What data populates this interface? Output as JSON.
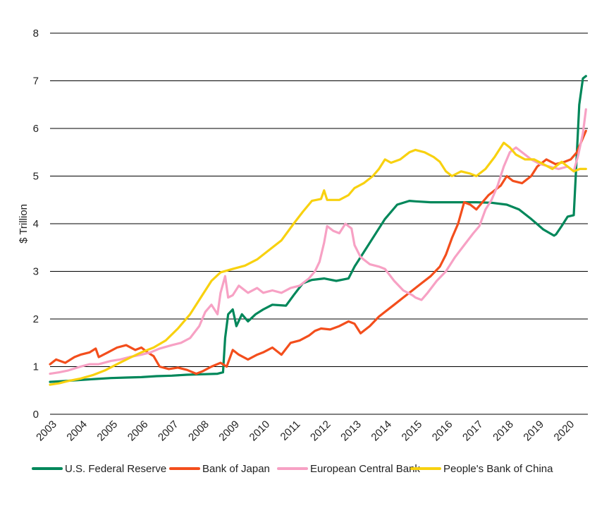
{
  "chart_data": {
    "type": "line",
    "ylabel": "$ Trillion",
    "xlabel": "",
    "ylim": [
      0,
      8
    ],
    "xlim": [
      2003,
      2020.65
    ],
    "yticks": [
      0,
      1,
      2,
      3,
      4,
      5,
      6,
      7,
      8
    ],
    "xticks": [
      "2003",
      "2004",
      "2005",
      "2006",
      "2007",
      "2008",
      "2009",
      "2010",
      "2011",
      "2012",
      "2013",
      "2014",
      "2015",
      "2016",
      "2017",
      "2018",
      "2019",
      "2020"
    ],
    "grid": true,
    "legend_position": "bottom",
    "series": [
      {
        "name": "U.S. Federal Reserve",
        "color": "#00875a",
        "points": [
          [
            2003.0,
            0.68
          ],
          [
            2003.5,
            0.7
          ],
          [
            2004.0,
            0.72
          ],
          [
            2004.5,
            0.74
          ],
          [
            2005.0,
            0.76
          ],
          [
            2005.5,
            0.77
          ],
          [
            2006.0,
            0.78
          ],
          [
            2006.5,
            0.8
          ],
          [
            2007.0,
            0.81
          ],
          [
            2007.5,
            0.83
          ],
          [
            2008.0,
            0.84
          ],
          [
            2008.5,
            0.85
          ],
          [
            2008.68,
            0.88
          ],
          [
            2008.75,
            1.6
          ],
          [
            2008.85,
            2.1
          ],
          [
            2009.0,
            2.2
          ],
          [
            2009.12,
            1.85
          ],
          [
            2009.3,
            2.1
          ],
          [
            2009.5,
            1.95
          ],
          [
            2009.75,
            2.1
          ],
          [
            2010.0,
            2.2
          ],
          [
            2010.3,
            2.3
          ],
          [
            2010.75,
            2.28
          ],
          [
            2011.0,
            2.5
          ],
          [
            2011.3,
            2.75
          ],
          [
            2011.6,
            2.82
          ],
          [
            2012.0,
            2.85
          ],
          [
            2012.4,
            2.8
          ],
          [
            2012.8,
            2.85
          ],
          [
            2013.0,
            3.1
          ],
          [
            2013.3,
            3.4
          ],
          [
            2013.6,
            3.7
          ],
          [
            2014.0,
            4.1
          ],
          [
            2014.4,
            4.4
          ],
          [
            2014.8,
            4.48
          ],
          [
            2015.0,
            4.47
          ],
          [
            2015.5,
            4.45
          ],
          [
            2016.0,
            4.45
          ],
          [
            2016.5,
            4.45
          ],
          [
            2017.0,
            4.45
          ],
          [
            2017.5,
            4.44
          ],
          [
            2018.0,
            4.4
          ],
          [
            2018.4,
            4.3
          ],
          [
            2018.8,
            4.1
          ],
          [
            2019.2,
            3.88
          ],
          [
            2019.55,
            3.75
          ],
          [
            2019.62,
            3.78
          ],
          [
            2019.8,
            3.95
          ],
          [
            2020.0,
            4.15
          ],
          [
            2020.2,
            4.18
          ],
          [
            2020.28,
            5.2
          ],
          [
            2020.38,
            6.5
          ],
          [
            2020.5,
            7.05
          ],
          [
            2020.6,
            7.1
          ]
        ]
      },
      {
        "name": "Bank of Japan",
        "color": "#f34e1c",
        "points": [
          [
            2003.0,
            1.05
          ],
          [
            2003.2,
            1.15
          ],
          [
            2003.5,
            1.08
          ],
          [
            2003.8,
            1.2
          ],
          [
            2004.0,
            1.25
          ],
          [
            2004.3,
            1.3
          ],
          [
            2004.5,
            1.38
          ],
          [
            2004.6,
            1.2
          ],
          [
            2004.9,
            1.3
          ],
          [
            2005.2,
            1.4
          ],
          [
            2005.5,
            1.45
          ],
          [
            2005.8,
            1.35
          ],
          [
            2006.0,
            1.4
          ],
          [
            2006.2,
            1.3
          ],
          [
            2006.4,
            1.22
          ],
          [
            2006.6,
            1.0
          ],
          [
            2006.9,
            0.95
          ],
          [
            2007.2,
            0.98
          ],
          [
            2007.5,
            0.93
          ],
          [
            2007.8,
            0.85
          ],
          [
            2008.0,
            0.9
          ],
          [
            2008.3,
            1.0
          ],
          [
            2008.6,
            1.08
          ],
          [
            2008.8,
            1.0
          ],
          [
            2009.0,
            1.35
          ],
          [
            2009.2,
            1.25
          ],
          [
            2009.5,
            1.15
          ],
          [
            2009.8,
            1.25
          ],
          [
            2010.0,
            1.3
          ],
          [
            2010.3,
            1.4
          ],
          [
            2010.6,
            1.25
          ],
          [
            2010.9,
            1.5
          ],
          [
            2011.2,
            1.55
          ],
          [
            2011.5,
            1.65
          ],
          [
            2011.7,
            1.75
          ],
          [
            2011.9,
            1.8
          ],
          [
            2012.2,
            1.78
          ],
          [
            2012.5,
            1.85
          ],
          [
            2012.8,
            1.95
          ],
          [
            2013.0,
            1.9
          ],
          [
            2013.2,
            1.7
          ],
          [
            2013.5,
            1.85
          ],
          [
            2013.8,
            2.05
          ],
          [
            2014.0,
            2.15
          ],
          [
            2014.3,
            2.3
          ],
          [
            2014.6,
            2.45
          ],
          [
            2014.9,
            2.6
          ],
          [
            2015.2,
            2.75
          ],
          [
            2015.5,
            2.9
          ],
          [
            2015.8,
            3.1
          ],
          [
            2016.0,
            3.35
          ],
          [
            2016.2,
            3.7
          ],
          [
            2016.4,
            4.0
          ],
          [
            2016.6,
            4.45
          ],
          [
            2016.8,
            4.4
          ],
          [
            2017.0,
            4.3
          ],
          [
            2017.2,
            4.45
          ],
          [
            2017.4,
            4.6
          ],
          [
            2017.6,
            4.7
          ],
          [
            2017.8,
            4.8
          ],
          [
            2018.0,
            5.0
          ],
          [
            2018.2,
            4.9
          ],
          [
            2018.5,
            4.85
          ],
          [
            2018.8,
            5.0
          ],
          [
            2019.0,
            5.2
          ],
          [
            2019.3,
            5.35
          ],
          [
            2019.6,
            5.25
          ],
          [
            2019.9,
            5.3
          ],
          [
            2020.1,
            5.35
          ],
          [
            2020.3,
            5.5
          ],
          [
            2020.5,
            5.8
          ],
          [
            2020.6,
            5.95
          ]
        ]
      },
      {
        "name": "European Central Bank",
        "color": "#f7a1c4",
        "points": [
          [
            2003.0,
            0.85
          ],
          [
            2003.3,
            0.88
          ],
          [
            2003.6,
            0.92
          ],
          [
            2004.0,
            1.0
          ],
          [
            2004.3,
            1.05
          ],
          [
            2004.6,
            1.05
          ],
          [
            2005.0,
            1.12
          ],
          [
            2005.3,
            1.15
          ],
          [
            2005.6,
            1.2
          ],
          [
            2006.0,
            1.25
          ],
          [
            2006.3,
            1.3
          ],
          [
            2006.6,
            1.38
          ],
          [
            2007.0,
            1.45
          ],
          [
            2007.3,
            1.5
          ],
          [
            2007.6,
            1.6
          ],
          [
            2007.9,
            1.85
          ],
          [
            2008.1,
            2.15
          ],
          [
            2008.3,
            2.3
          ],
          [
            2008.5,
            2.1
          ],
          [
            2008.6,
            2.55
          ],
          [
            2008.75,
            2.9
          ],
          [
            2008.85,
            2.45
          ],
          [
            2009.0,
            2.5
          ],
          [
            2009.2,
            2.7
          ],
          [
            2009.5,
            2.55
          ],
          [
            2009.8,
            2.65
          ],
          [
            2010.0,
            2.55
          ],
          [
            2010.3,
            2.6
          ],
          [
            2010.6,
            2.55
          ],
          [
            2010.9,
            2.65
          ],
          [
            2011.2,
            2.7
          ],
          [
            2011.5,
            2.85
          ],
          [
            2011.7,
            3.0
          ],
          [
            2011.85,
            3.2
          ],
          [
            2012.0,
            3.6
          ],
          [
            2012.1,
            3.95
          ],
          [
            2012.3,
            3.85
          ],
          [
            2012.5,
            3.8
          ],
          [
            2012.7,
            4.0
          ],
          [
            2012.9,
            3.9
          ],
          [
            2013.0,
            3.55
          ],
          [
            2013.2,
            3.3
          ],
          [
            2013.5,
            3.15
          ],
          [
            2013.8,
            3.1
          ],
          [
            2014.0,
            3.05
          ],
          [
            2014.3,
            2.8
          ],
          [
            2014.6,
            2.6
          ],
          [
            2014.9,
            2.5
          ],
          [
            2015.0,
            2.45
          ],
          [
            2015.2,
            2.4
          ],
          [
            2015.4,
            2.55
          ],
          [
            2015.7,
            2.8
          ],
          [
            2016.0,
            3.0
          ],
          [
            2016.3,
            3.3
          ],
          [
            2016.6,
            3.55
          ],
          [
            2016.9,
            3.8
          ],
          [
            2017.1,
            3.95
          ],
          [
            2017.3,
            4.3
          ],
          [
            2017.5,
            4.5
          ],
          [
            2017.7,
            4.8
          ],
          [
            2017.9,
            5.2
          ],
          [
            2018.1,
            5.5
          ],
          [
            2018.3,
            5.6
          ],
          [
            2018.5,
            5.5
          ],
          [
            2018.8,
            5.35
          ],
          [
            2019.1,
            5.25
          ],
          [
            2019.4,
            5.2
          ],
          [
            2019.7,
            5.15
          ],
          [
            2020.0,
            5.2
          ],
          [
            2020.2,
            5.1
          ],
          [
            2020.35,
            5.45
          ],
          [
            2020.5,
            5.9
          ],
          [
            2020.6,
            6.4
          ]
        ]
      },
      {
        "name": "People's Bank of China",
        "color": "#f8d10f",
        "points": [
          [
            2003.0,
            0.62
          ],
          [
            2003.3,
            0.65
          ],
          [
            2003.6,
            0.7
          ],
          [
            2004.0,
            0.75
          ],
          [
            2004.4,
            0.82
          ],
          [
            2004.8,
            0.92
          ],
          [
            2005.2,
            1.05
          ],
          [
            2005.6,
            1.18
          ],
          [
            2006.0,
            1.3
          ],
          [
            2006.4,
            1.4
          ],
          [
            2006.8,
            1.55
          ],
          [
            2007.2,
            1.8
          ],
          [
            2007.6,
            2.1
          ],
          [
            2008.0,
            2.5
          ],
          [
            2008.3,
            2.8
          ],
          [
            2008.6,
            2.98
          ],
          [
            2009.0,
            3.05
          ],
          [
            2009.4,
            3.12
          ],
          [
            2009.8,
            3.25
          ],
          [
            2010.2,
            3.45
          ],
          [
            2010.6,
            3.65
          ],
          [
            2011.0,
            4.0
          ],
          [
            2011.3,
            4.25
          ],
          [
            2011.6,
            4.48
          ],
          [
            2011.9,
            4.52
          ],
          [
            2012.0,
            4.7
          ],
          [
            2012.1,
            4.5
          ],
          [
            2012.5,
            4.5
          ],
          [
            2012.8,
            4.6
          ],
          [
            2013.0,
            4.75
          ],
          [
            2013.3,
            4.85
          ],
          [
            2013.6,
            5.0
          ],
          [
            2013.8,
            5.15
          ],
          [
            2014.0,
            5.35
          ],
          [
            2014.2,
            5.28
          ],
          [
            2014.5,
            5.35
          ],
          [
            2014.8,
            5.5
          ],
          [
            2015.0,
            5.55
          ],
          [
            2015.3,
            5.5
          ],
          [
            2015.6,
            5.4
          ],
          [
            2015.8,
            5.3
          ],
          [
            2016.0,
            5.1
          ],
          [
            2016.2,
            5.0
          ],
          [
            2016.5,
            5.1
          ],
          [
            2016.8,
            5.05
          ],
          [
            2017.0,
            5.0
          ],
          [
            2017.3,
            5.15
          ],
          [
            2017.6,
            5.4
          ],
          [
            2017.9,
            5.7
          ],
          [
            2018.1,
            5.6
          ],
          [
            2018.3,
            5.45
          ],
          [
            2018.6,
            5.35
          ],
          [
            2018.9,
            5.35
          ],
          [
            2019.2,
            5.25
          ],
          [
            2019.5,
            5.15
          ],
          [
            2019.8,
            5.3
          ],
          [
            2020.0,
            5.2
          ],
          [
            2020.2,
            5.1
          ],
          [
            2020.4,
            5.15
          ],
          [
            2020.6,
            5.15
          ]
        ]
      }
    ]
  }
}
